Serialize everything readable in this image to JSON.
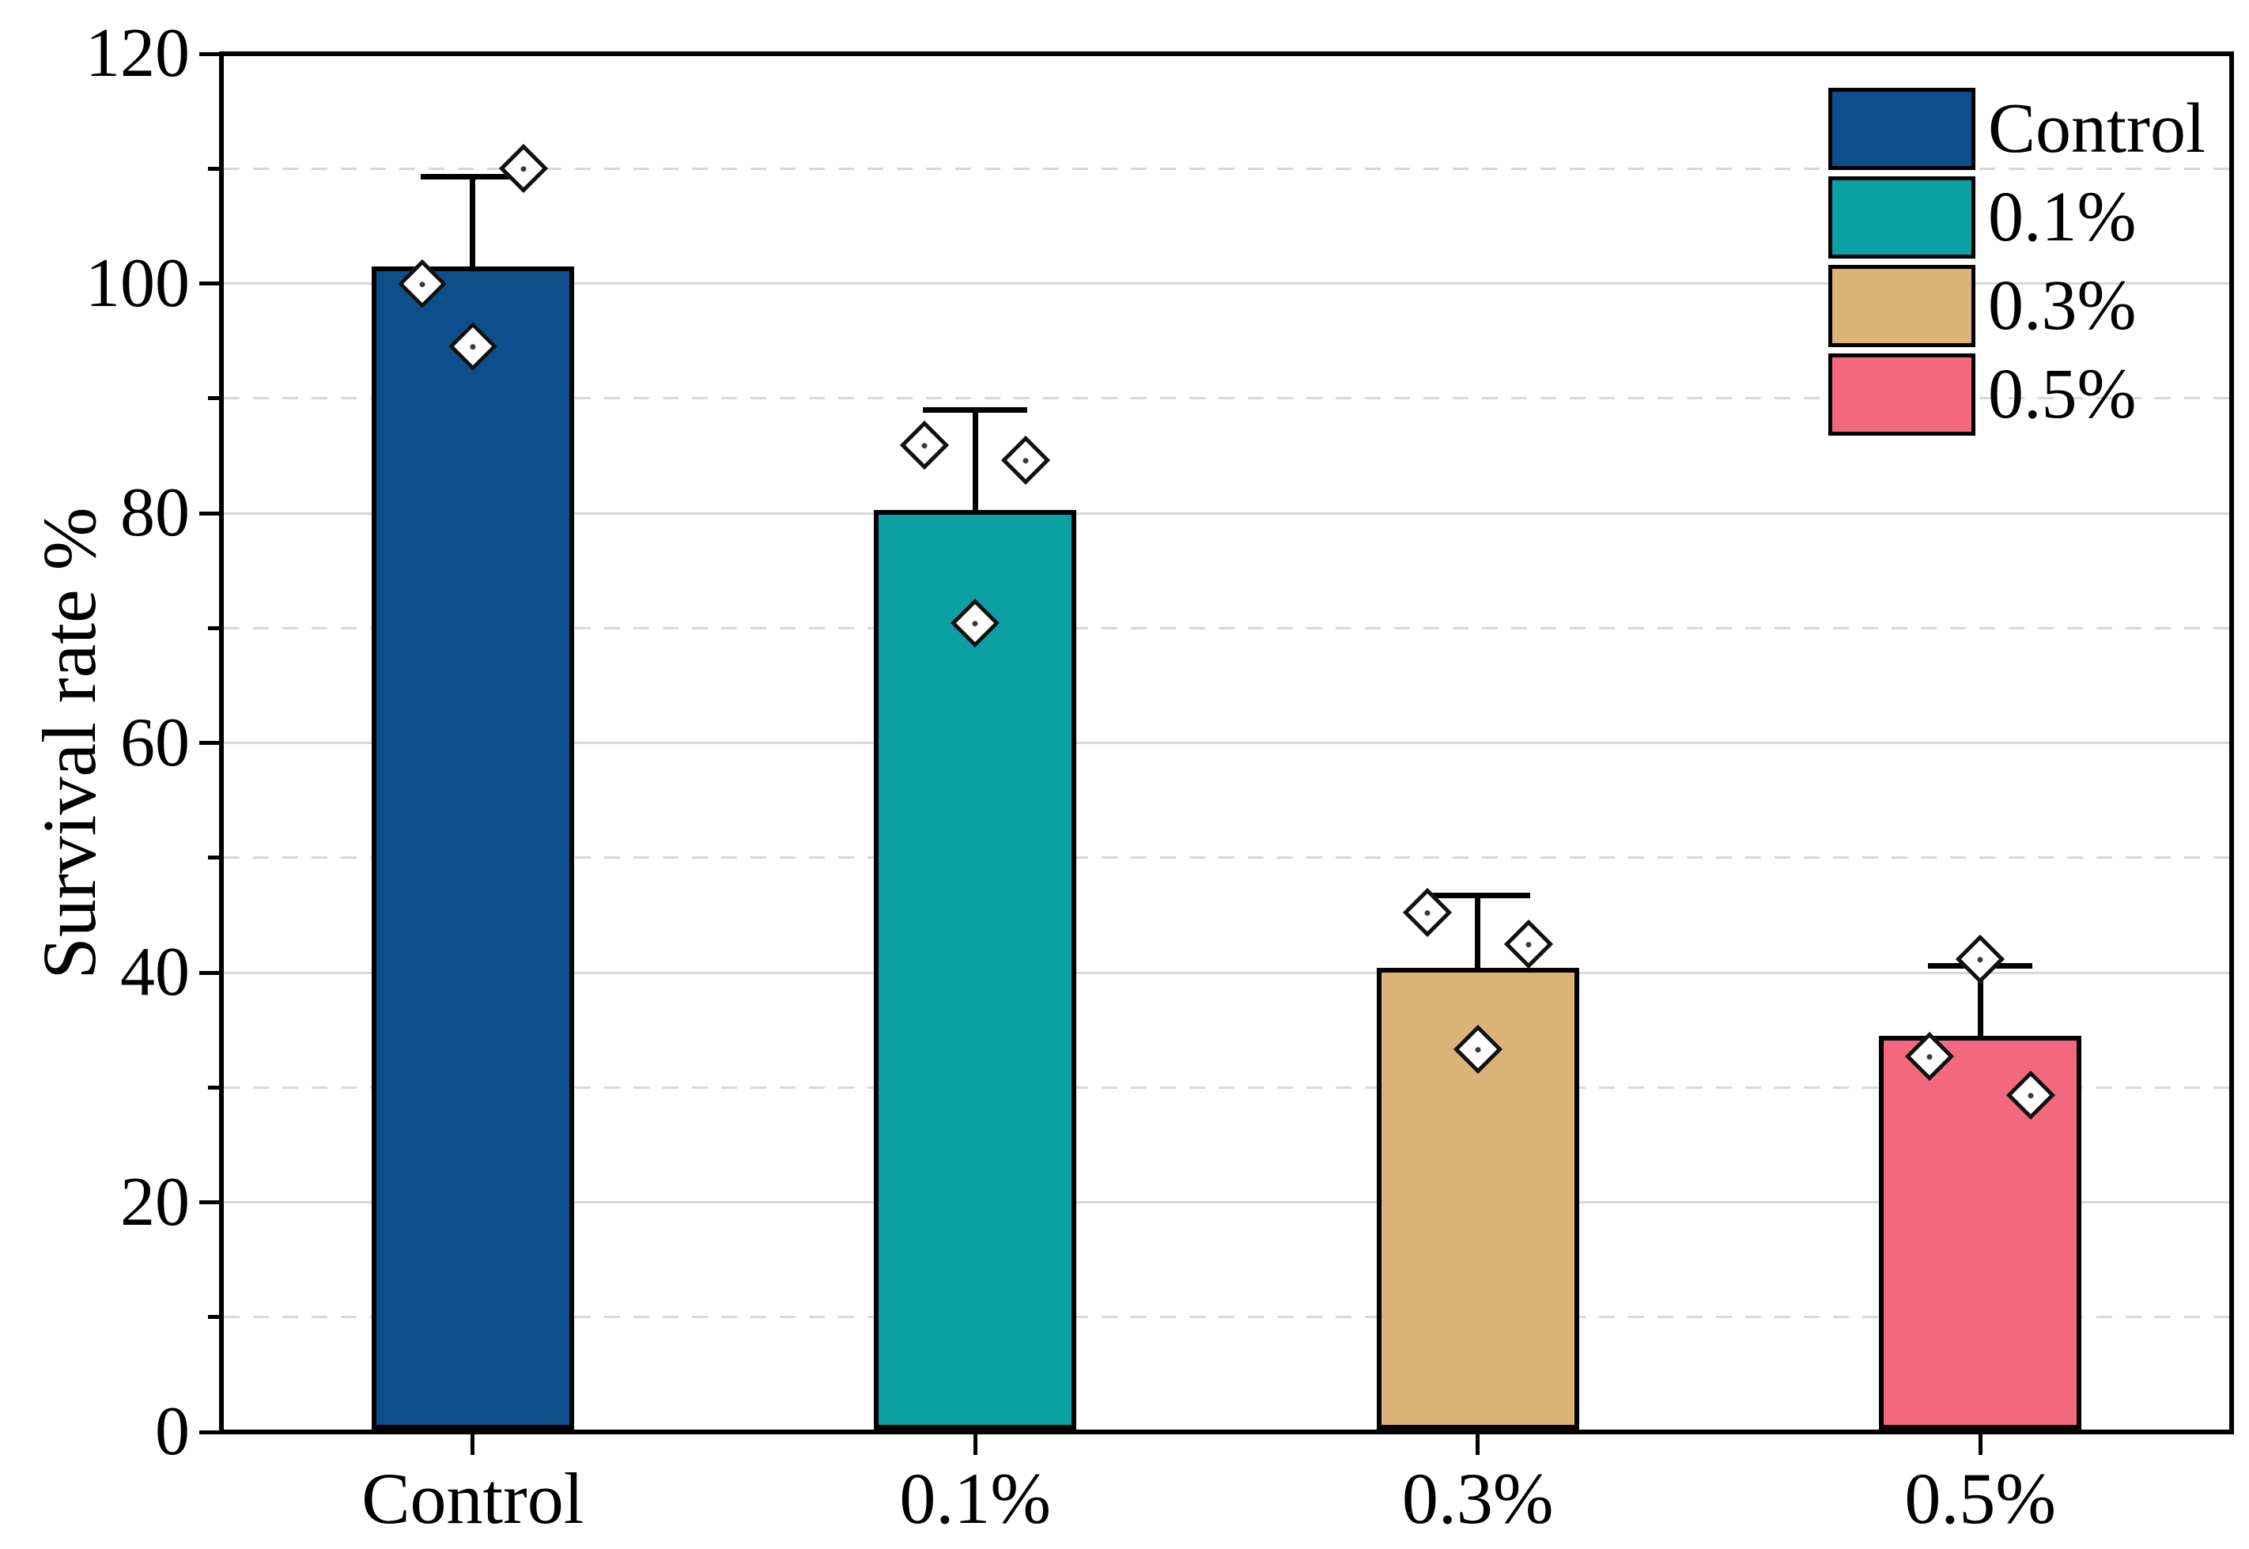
{
  "figure": {
    "background": "#ffffff",
    "text_color": "#000000",
    "gridline_color": "#d8d8d8"
  },
  "chart_data": {
    "type": "bar",
    "title": "",
    "xlabel": "",
    "ylabel": "Survival rate %",
    "ylim": [
      0,
      120
    ],
    "y_major_step": 20,
    "y_minor_step": 10,
    "y_tick_labels": [
      "0",
      "20",
      "40",
      "60",
      "80",
      "100",
      "120"
    ],
    "grid": {
      "major_style": "solid",
      "minor_style": "dashed",
      "on": true
    },
    "legend_position": "top-right",
    "categories": [
      "Control",
      "0.1%",
      "0.3%",
      "0.5%"
    ],
    "bars": [
      {
        "label": "Control",
        "color": "#0d4e8c",
        "mean": 101.5,
        "error_high": 109.3,
        "points": [
          {
            "value": 100.0,
            "offset": -1
          },
          {
            "value": 94.5,
            "offset": 0
          },
          {
            "value": 110.0,
            "offset": 1
          }
        ]
      },
      {
        "label": "0.1%",
        "color": "#0aa0a4",
        "mean": 80.3,
        "error_high": 89.0,
        "points": [
          {
            "value": 85.9,
            "offset": -1
          },
          {
            "value": 70.4,
            "offset": 0
          },
          {
            "value": 84.6,
            "offset": 1
          }
        ]
      },
      {
        "label": "0.3%",
        "color": "#dbb377",
        "mean": 40.4,
        "error_high": 46.7,
        "points": [
          {
            "value": 45.2,
            "offset": -1
          },
          {
            "value": 33.3,
            "offset": 0
          },
          {
            "value": 42.5,
            "offset": 1
          }
        ]
      },
      {
        "label": "0.5%",
        "color": "#f4687d",
        "mean": 34.5,
        "error_high": 40.6,
        "points": [
          {
            "value": 32.7,
            "offset": -1
          },
          {
            "value": 41.2,
            "offset": 0
          },
          {
            "value": 29.3,
            "offset": 1
          }
        ]
      }
    ],
    "legend": [
      {
        "label": "Control",
        "color": "#0d4e8c"
      },
      {
        "label": "0.1%",
        "color": "#0aa0a4"
      },
      {
        "label": "0.3%",
        "color": "#dbb377"
      },
      {
        "label": "0.5%",
        "color": "#f4687d"
      }
    ],
    "marker": {
      "shape": "diamond",
      "fill": "#ffffff",
      "edge": "#111111"
    }
  }
}
